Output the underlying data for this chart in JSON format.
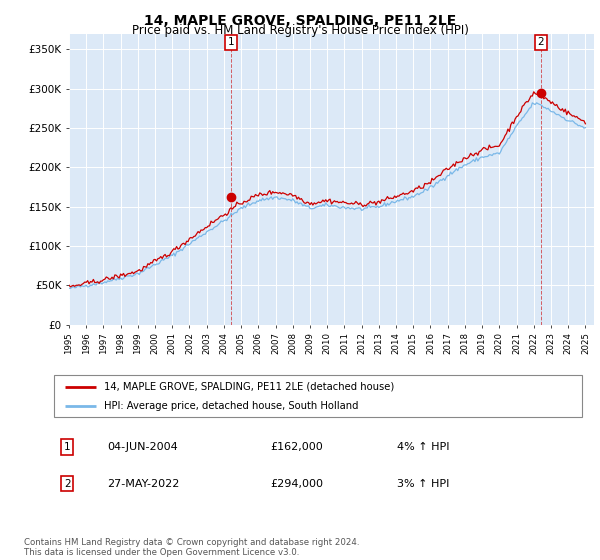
{
  "title": "14, MAPLE GROVE, SPALDING, PE11 2LE",
  "subtitle": "Price paid vs. HM Land Registry's House Price Index (HPI)",
  "title_fontsize": 10,
  "subtitle_fontsize": 8.5,
  "background_color": "#dce9f7",
  "hpi_line_color": "#7ab8e8",
  "price_line_color": "#cc0000",
  "marker_color": "#cc0000",
  "ylim": [
    0,
    370000
  ],
  "yticks": [
    0,
    50000,
    100000,
    150000,
    200000,
    250000,
    300000,
    350000
  ],
  "ytick_labels": [
    "£0",
    "£50K",
    "£100K",
    "£150K",
    "£200K",
    "£250K",
    "£300K",
    "£350K"
  ],
  "sale1_year": 2004.42,
  "sale1_price": 162000,
  "sale2_year": 2022.4,
  "sale2_price": 294000,
  "legend_line1": "14, MAPLE GROVE, SPALDING, PE11 2LE (detached house)",
  "legend_line2": "HPI: Average price, detached house, South Holland",
  "annotation1_date": "04-JUN-2004",
  "annotation1_price": "£162,000",
  "annotation1_pct": "4% ↑ HPI",
  "annotation2_date": "27-MAY-2022",
  "annotation2_price": "£294,000",
  "annotation2_pct": "3% ↑ HPI",
  "footer": "Contains HM Land Registry data © Crown copyright and database right 2024.\nThis data is licensed under the Open Government Licence v3.0."
}
